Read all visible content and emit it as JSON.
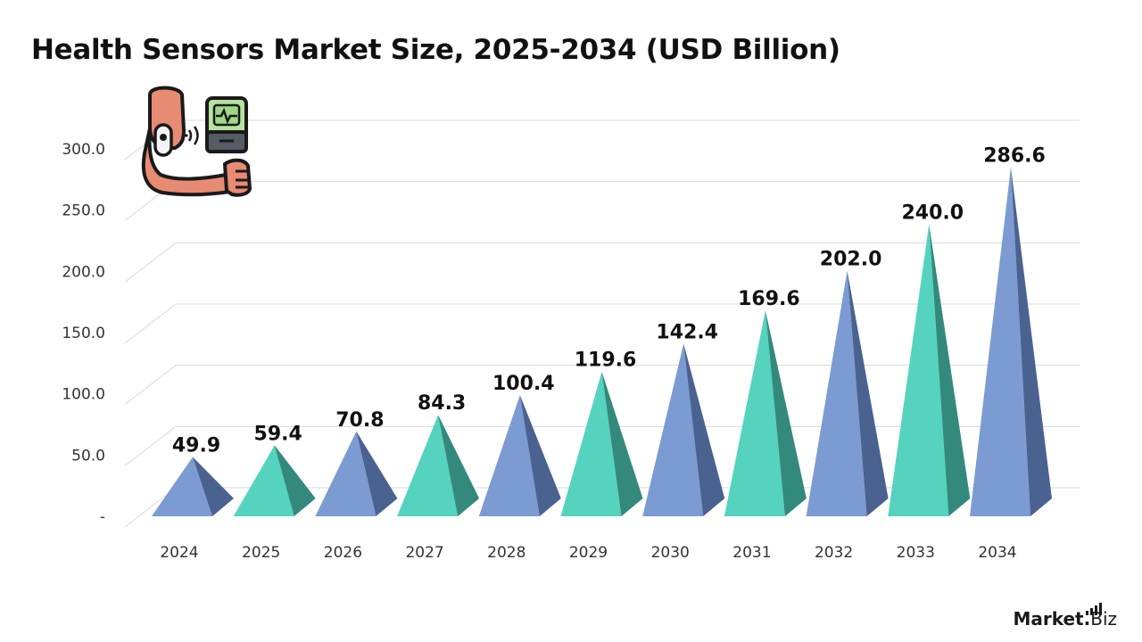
{
  "title": "Health Sensors Market Size, 2025-2034 (USD Billion)",
  "brand": {
    "main": "Market",
    "dot": ".",
    "suffix": "Biz"
  },
  "icon": "arm-wearable-sensor-phone-icon",
  "colors": {
    "blue_face": "#7b9bd2",
    "blue_side": "#4a6290",
    "teal_face": "#55d3bf",
    "teal_side": "#338a7c",
    "grid": "#d9d9d9",
    "text": "#111111",
    "axis_text": "#333333"
  },
  "chart_data": {
    "type": "bar",
    "categories": [
      "2024",
      "2025",
      "2026",
      "2027",
      "2028",
      "2029",
      "2030",
      "2031",
      "2032",
      "2033",
      "2034"
    ],
    "values": [
      49.9,
      59.4,
      70.8,
      84.3,
      100.4,
      119.6,
      142.4,
      169.6,
      202.0,
      240.0,
      286.6
    ],
    "value_labels": [
      "49.9",
      "59.4",
      "70.8",
      "84.3",
      "100.4",
      "119.6",
      "142.4",
      "169.6",
      "202.0",
      "240.0",
      "286.6"
    ],
    "bar_colors": [
      "blue",
      "teal",
      "blue",
      "teal",
      "blue",
      "teal",
      "blue",
      "teal",
      "blue",
      "teal",
      "blue"
    ],
    "ylim": [
      0,
      300
    ],
    "yticks": [
      0,
      50,
      100,
      150,
      200,
      250,
      300
    ],
    "ytick_labels": [
      "-",
      "50.0",
      "100.0",
      "150.0",
      "200.0",
      "250.0",
      "300.0"
    ],
    "xlabel": "",
    "ylabel": "",
    "grid": true,
    "legend": "none",
    "mark_shape": "pyramid"
  }
}
